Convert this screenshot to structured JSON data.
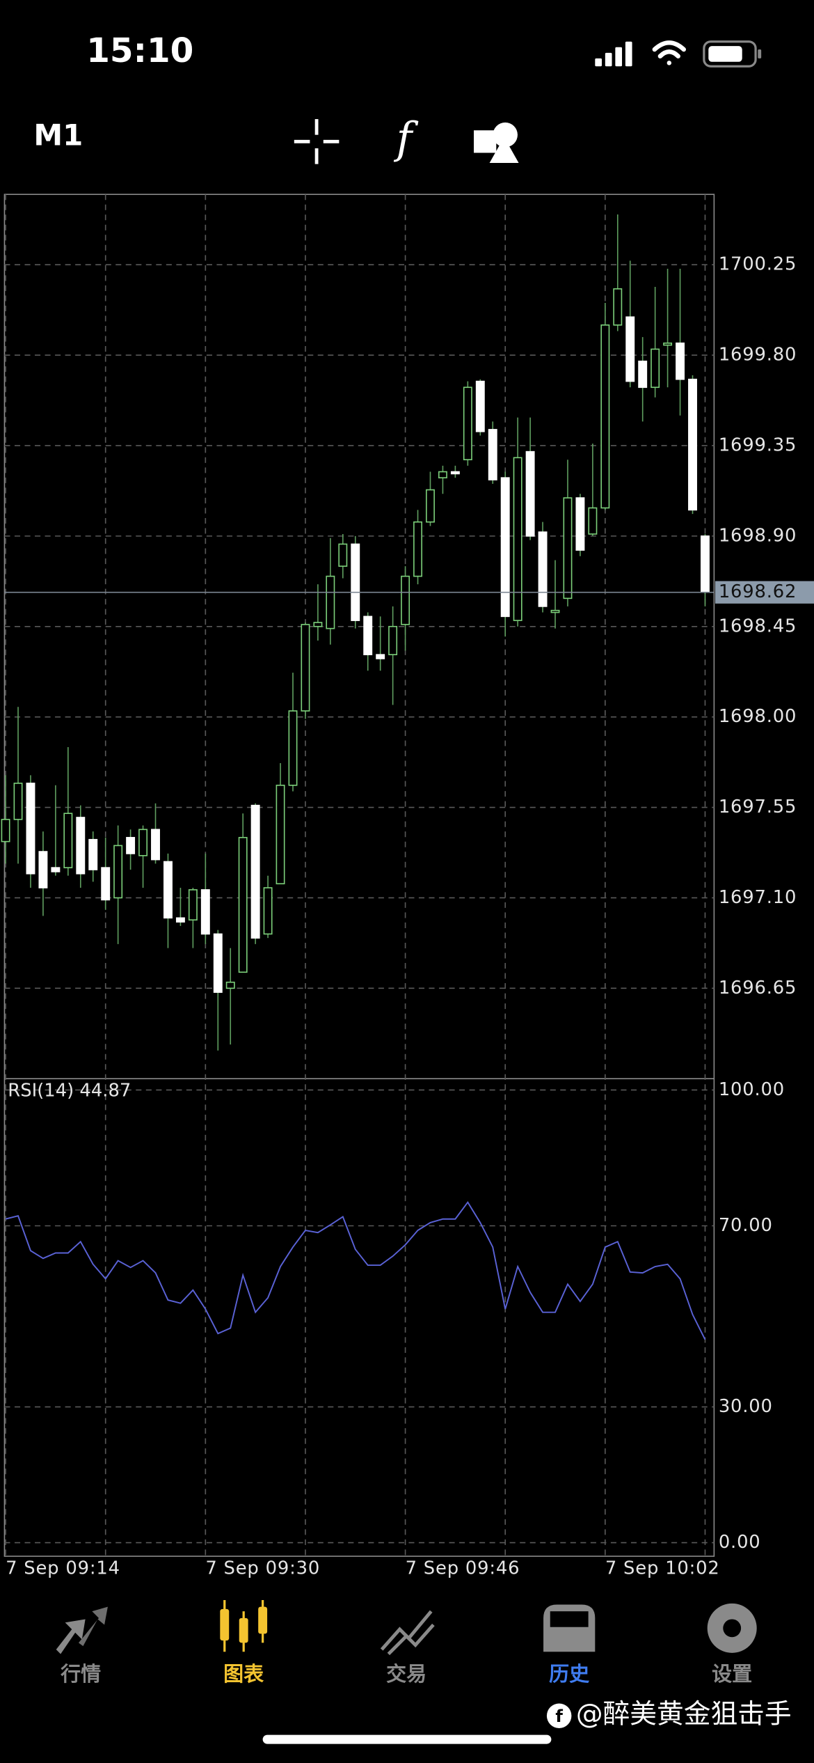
{
  "status_bar": {
    "time": "15:10"
  },
  "toolbar": {
    "timeframe": "M1",
    "indicator_icon": "f"
  },
  "chart_data": [
    {
      "type": "candlestick",
      "categories": [
        "7 Sep 09:14",
        null,
        null,
        null,
        null,
        null,
        null,
        null,
        null,
        null,
        null,
        null,
        null,
        null,
        null,
        null,
        "7 Sep 09:30",
        null,
        null,
        null,
        null,
        null,
        null,
        null,
        null,
        null,
        null,
        null,
        null,
        null,
        null,
        null,
        "7 Sep 09:46",
        null,
        null,
        null,
        null,
        null,
        null,
        null,
        null,
        null,
        null,
        null,
        null,
        null,
        null,
        null,
        "7 Sep 10:02",
        null,
        null,
        null,
        null,
        null,
        null,
        null,
        null
      ],
      "open": [
        1697.38,
        1697.49,
        1697.67,
        1697.33,
        1697.25,
        1697.25,
        1697.5,
        1697.39,
        1697.25,
        1697.1,
        1697.4,
        1697.31,
        1697.44,
        1697.28,
        1697.0,
        1696.99,
        1697.14,
        1696.92,
        1696.65,
        1696.73,
        1697.56,
        1696.92,
        1697.17,
        1697.66,
        1698.03,
        1698.45,
        1698.44,
        1698.75,
        1698.86,
        1698.5,
        1698.31,
        1698.31,
        1698.46,
        1698.7,
        1698.97,
        1699.19,
        1699.22,
        1699.28,
        1699.67,
        1699.43,
        1699.19,
        1698.48,
        1699.32,
        1698.92,
        1698.52,
        1698.59,
        1699.09,
        1698.91,
        1699.04,
        1699.95,
        1699.99,
        1699.77,
        1699.64,
        1699.85,
        1699.86,
        1699.68,
        1698.9
      ],
      "high": [
        1697.71,
        1698.05,
        1697.71,
        1697.43,
        1697.66,
        1697.85,
        1697.56,
        1697.43,
        1697.4,
        1697.46,
        1697.44,
        1697.46,
        1697.57,
        1697.32,
        1697.15,
        1697.15,
        1697.32,
        1696.94,
        1696.85,
        1697.52,
        1697.57,
        1697.21,
        1697.77,
        1698.22,
        1698.47,
        1698.66,
        1698.89,
        1698.91,
        1698.9,
        1698.52,
        1698.5,
        1698.55,
        1698.75,
        1699.03,
        1699.22,
        1699.25,
        1699.25,
        1699.67,
        1699.68,
        1699.47,
        1699.22,
        1699.49,
        1699.49,
        1698.97,
        1698.78,
        1699.28,
        1699.11,
        1699.36,
        1700.06,
        1700.5,
        1700.27,
        1699.89,
        1700.14,
        1700.23,
        1700.23,
        1699.7,
        1698.91
      ],
      "low": [
        1697.27,
        1697.27,
        1697.15,
        1697.01,
        1697.21,
        1697.21,
        1697.15,
        1697.18,
        1697.04,
        1696.87,
        1697.24,
        1697.15,
        1697.27,
        1696.85,
        1696.96,
        1696.85,
        1696.87,
        1696.34,
        1696.37,
        1696.73,
        1696.87,
        1696.9,
        1697.17,
        1697.63,
        1697.99,
        1698.38,
        1698.36,
        1698.69,
        1698.44,
        1698.23,
        1698.23,
        1698.06,
        1698.33,
        1698.66,
        1698.95,
        1699.11,
        1699.19,
        1699.25,
        1699.4,
        1699.16,
        1698.4,
        1698.45,
        1698.88,
        1698.52,
        1698.44,
        1698.55,
        1698.8,
        1698.9,
        1699.03,
        1699.92,
        1699.64,
        1699.47,
        1699.59,
        1699.64,
        1699.5,
        1699.01,
        1698.55
      ],
      "close": [
        1697.49,
        1697.67,
        1697.22,
        1697.15,
        1697.23,
        1697.52,
        1697.22,
        1697.24,
        1697.09,
        1697.36,
        1697.32,
        1697.44,
        1697.29,
        1697.0,
        1696.98,
        1697.14,
        1696.92,
        1696.63,
        1696.68,
        1697.4,
        1696.9,
        1697.15,
        1697.66,
        1698.03,
        1698.46,
        1698.47,
        1698.7,
        1698.86,
        1698.48,
        1698.31,
        1698.29,
        1698.45,
        1698.7,
        1698.97,
        1699.13,
        1699.22,
        1699.21,
        1699.64,
        1699.42,
        1699.18,
        1698.5,
        1699.29,
        1698.9,
        1698.55,
        1698.53,
        1699.09,
        1698.83,
        1699.04,
        1699.95,
        1700.13,
        1699.67,
        1699.64,
        1699.83,
        1699.86,
        1699.68,
        1699.03,
        1698.62
      ],
      "up_color": "#7ccf7a",
      "down_color": "#ffffff",
      "wick_color": "#5f9e5f",
      "last_price": 1698.62,
      "ylim": [
        1696.2,
        1700.6
      ],
      "yticks": [
        1700.25,
        {
          "value": 1699.8,
          "label": "1699.80"
        },
        1699.35,
        {
          "value": 1698.9,
          "label": "1698.90"
        },
        1698.45,
        {
          "value": 1698,
          "label": "1698.00"
        },
        1697.55,
        {
          "value": 1697.1,
          "label": "1697.10"
        },
        1696.65
      ],
      "grid": true
    },
    {
      "type": "line",
      "label": "RSI(14) 44.87",
      "color": "#5a62d6",
      "values": [
        71.5,
        72.2,
        64.5,
        62.8,
        64.0,
        64.0,
        66.5,
        61.5,
        58.3,
        62.3,
        60.8,
        62.3,
        59.6,
        53.6,
        52.9,
        55.8,
        51.6,
        46.2,
        47.4,
        59.1,
        50.9,
        54.1,
        61.0,
        65.3,
        69.0,
        68.5,
        70.2,
        72.0,
        64.8,
        61.3,
        61.3,
        63.3,
        65.8,
        69.0,
        70.7,
        71.5,
        71.5,
        75.2,
        70.7,
        65.3,
        51.6,
        61.0,
        55.3,
        50.9,
        50.9,
        57.1,
        53.3,
        57.1,
        65.3,
        66.5,
        59.8,
        59.6,
        61.0,
        61.5,
        58.3,
        50.4,
        44.87
      ],
      "ylim": [
        -3,
        102.5
      ],
      "yticks": [
        {
          "value": 100,
          "label": "100.00"
        },
        {
          "value": 70,
          "label": "70.00"
        },
        {
          "value": 30,
          "label": "30.00"
        },
        {
          "value": 0,
          "label": "0.00"
        }
      ],
      "grid": true
    }
  ],
  "tab_bar": {
    "tabs": [
      {
        "label": "行情",
        "color": "#8a8a8a"
      },
      {
        "label": "图表",
        "color": "#f4c430"
      },
      {
        "label": "交易",
        "color": "#8a8a8a"
      },
      {
        "label": "历史",
        "color": "#3f7cf0"
      },
      {
        "label": "设置",
        "color": "#8a8a8a"
      }
    ]
  },
  "watermark": "@醉美黄金狙击手"
}
